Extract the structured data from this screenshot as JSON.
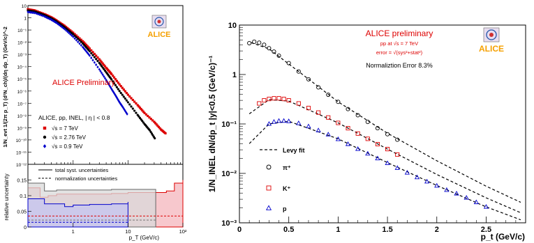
{
  "chart_data": [
    {
      "type": "scatter",
      "title": "",
      "ylabel": "1/N_evt 1/(2π p_T) (d²N_ch)/(dη dp_T) (GeV/c)^-2",
      "xlabel": "p_T (GeV/c)",
      "xscale": "log",
      "yscale": "log",
      "xlim": [
        0.15,
        100
      ],
      "ylim": [
        1e-12,
        10
      ],
      "y_ticks": [
        "10",
        "1",
        "10⁻¹",
        "10⁻²",
        "10⁻³",
        "10⁻⁴",
        "10⁻⁵",
        "10⁻⁶",
        "10⁻⁷",
        "10⁻⁸",
        "10⁻⁹",
        "10⁻¹⁰",
        "10⁻¹¹",
        "10⁻¹²"
      ],
      "x_ticks": [
        "1",
        "10",
        "10²"
      ],
      "annotation": "ALICE Preliminary",
      "legend_title": "ALICE, pp, INEL, | η | < 0.8",
      "legend_placement": "lower-left",
      "series": [
        {
          "name": "√s = 7 TeV",
          "color": "#dd0000",
          "marker": "square",
          "x": [
            0.15,
            0.2,
            0.3,
            0.4,
            0.5,
            0.7,
            1,
            1.5,
            2,
            3,
            4,
            5,
            7,
            10,
            15,
            20,
            30,
            40,
            50
          ],
          "y": [
            5,
            4,
            2,
            1.1,
            0.6,
            0.22,
            0.06,
            0.012,
            0.003,
            0.0004,
            8e-05,
            2.5e-05,
            3.5e-06,
            5e-07,
            7e-08,
            1.6e-08,
            3e-09,
            7e-10,
            3e-10
          ]
        },
        {
          "name": "√s = 2.76 TeV",
          "color": "#000000",
          "marker": "circle",
          "x": [
            0.15,
            0.2,
            0.3,
            0.4,
            0.5,
            0.7,
            1,
            1.5,
            2,
            3,
            4,
            5,
            7,
            10,
            15,
            20,
            25,
            32
          ],
          "y": [
            4,
            3.3,
            1.7,
            0.9,
            0.5,
            0.17,
            0.045,
            0.008,
            0.0018,
            0.0002,
            3.5e-05,
            9e-06,
            1e-06,
            1.2e-07,
            1.1e-08,
            2e-09,
            6e-10,
            1e-10
          ]
        },
        {
          "name": "√s = 0.9 TeV",
          "color": "#0000cc",
          "marker": "diamond",
          "x": [
            0.15,
            0.2,
            0.3,
            0.4,
            0.5,
            0.7,
            1,
            1.5,
            2,
            3,
            4,
            5,
            6,
            7,
            8,
            10
          ],
          "y": [
            3,
            2.5,
            1.3,
            0.7,
            0.38,
            0.12,
            0.028,
            0.004,
            0.0008,
            6e-05,
            8e-06,
            1.5e-06,
            4e-07,
            1.2e-07,
            5e-08,
            1e-08
          ]
        }
      ]
    },
    {
      "type": "area",
      "ylabel": "relative uncertainty",
      "xlabel": "p_T (GeV/c)",
      "xscale": "log",
      "xlim": [
        0.15,
        100
      ],
      "ylim": [
        0,
        0.2
      ],
      "y_ticks": [
        "0",
        "0.05",
        "0.1",
        "0.15"
      ],
      "x_ticks": [
        "1",
        "10",
        "10²"
      ],
      "legend": [
        "total syst. uncertainties",
        "normalization uncertainties"
      ],
      "series": [
        {
          "name": "√s = 7 TeV",
          "color": "#dd0000",
          "fill": "#f4b6bc",
          "x": [
            0.15,
            0.25,
            0.35,
            0.5,
            1,
            2,
            5,
            10,
            20,
            30,
            50,
            70,
            100
          ],
          "y": [
            0.125,
            0.095,
            0.1,
            0.105,
            0.105,
            0.105,
            0.107,
            0.11,
            0.11,
            0.11,
            0.115,
            0.14,
            0.15
          ]
        },
        {
          "name": "√s = 2.76 TeV",
          "color": "#666666",
          "fill": "#d9d9d9",
          "x": [
            0.15,
            0.3,
            0.5,
            1,
            2,
            5,
            10,
            20,
            32
          ],
          "y": [
            0.14,
            0.115,
            0.118,
            0.118,
            0.118,
            0.12,
            0.12,
            0.12,
            0.12
          ]
        },
        {
          "name": "√s = 0.9 TeV",
          "color": "#0000cc",
          "fill": "#c4c4f2",
          "x": [
            0.15,
            0.3,
            0.5,
            0.7,
            1,
            2,
            5,
            10
          ],
          "y": [
            0.09,
            0.074,
            0.074,
            0.065,
            0.07,
            0.072,
            0.074,
            0.08
          ]
        }
      ],
      "norm_levels": [
        0.035,
        0.022,
        0.015
      ]
    },
    {
      "type": "scatter",
      "title": "ALICE preliminary",
      "subtitle_lines": [
        "pp at √s = 7 TeV",
        "error = √(sys²+stat²)",
        "Normaliztion Error 8.3%"
      ],
      "ylabel": "1/N_INEL dN/dp_t |y|<0.5 (GeV/c)⁻¹",
      "xlabel": "p_t (GeV/c)",
      "yscale": "log",
      "xlim": [
        0,
        2.9
      ],
      "ylim": [
        0.001,
        10
      ],
      "x_ticks": [
        "0",
        "0.5",
        "1",
        "1.5",
        "2",
        "2.5"
      ],
      "y_ticks": [
        "10",
        "1",
        "10⁻¹",
        "10⁻²",
        "10⁻³"
      ],
      "legend": [
        "Levy fit",
        "π⁺",
        "K⁺",
        "p"
      ],
      "series": [
        {
          "name": "π⁺",
          "color": "#000000",
          "marker": "circle",
          "x": [
            0.1,
            0.15,
            0.2,
            0.25,
            0.3,
            0.35,
            0.4,
            0.5,
            0.6,
            0.7,
            0.8,
            0.9,
            1.0,
            1.1,
            1.2,
            1.3,
            1.4,
            1.5,
            1.6
          ],
          "y": [
            4.3,
            4.6,
            4.4,
            4,
            3.4,
            2.9,
            2.4,
            1.7,
            1.15,
            0.8,
            0.55,
            0.39,
            0.28,
            0.2,
            0.15,
            0.11,
            0.082,
            0.062,
            0.048
          ]
        },
        {
          "name": "K⁺",
          "color": "#dd0000",
          "marker": "square",
          "x": [
            0.2,
            0.25,
            0.3,
            0.35,
            0.4,
            0.45,
            0.5,
            0.6,
            0.7,
            0.8,
            0.9,
            1.0,
            1.1,
            1.2,
            1.3,
            1.4,
            1.5,
            1.6
          ],
          "y": [
            0.26,
            0.3,
            0.32,
            0.33,
            0.33,
            0.32,
            0.3,
            0.26,
            0.21,
            0.17,
            0.135,
            0.105,
            0.082,
            0.064,
            0.05,
            0.039,
            0.031,
            0.024
          ]
        },
        {
          "name": "p",
          "color": "#0000cc",
          "marker": "triangle",
          "x": [
            0.3,
            0.35,
            0.4,
            0.45,
            0.5,
            0.6,
            0.7,
            0.8,
            0.9,
            1.0,
            1.1,
            1.2,
            1.3,
            1.4,
            1.5,
            1.6,
            1.7,
            1.8,
            1.9,
            2.0,
            2.1,
            2.2,
            2.3,
            2.4,
            2.5
          ],
          "y": [
            0.1,
            0.11,
            0.115,
            0.115,
            0.113,
            0.103,
            0.089,
            0.074,
            0.061,
            0.049,
            0.039,
            0.031,
            0.025,
            0.02,
            0.016,
            0.0128,
            0.0103,
            0.0083,
            0.0068,
            0.0056,
            0.0046,
            0.0039,
            0.0032,
            0.0026,
            0.0021
          ]
        }
      ],
      "fits": [
        {
          "name": "Levy fit π⁺",
          "x": [
            0.12,
            0.3,
            0.6,
            1.0,
            1.5,
            2.0,
            2.5,
            2.85
          ],
          "y": [
            4.4,
            3.3,
            1.15,
            0.28,
            0.065,
            0.018,
            0.0055,
            0.0026
          ]
        },
        {
          "name": "Levy fit K⁺",
          "x": [
            0.1,
            0.3,
            0.5,
            1.0,
            1.5,
            2.0,
            2.5,
            2.85
          ],
          "y": [
            0.16,
            0.31,
            0.29,
            0.105,
            0.031,
            0.0095,
            0.0032,
            0.0016
          ]
        },
        {
          "name": "Levy fit p",
          "x": [
            0.1,
            0.3,
            0.5,
            1.0,
            1.5,
            2.0,
            2.5,
            2.85
          ],
          "y": [
            0.04,
            0.1,
            0.113,
            0.05,
            0.0165,
            0.0057,
            0.0021,
            0.00115
          ]
        }
      ]
    }
  ],
  "logo": {
    "text": "ALICE",
    "color": "#f5a000"
  }
}
